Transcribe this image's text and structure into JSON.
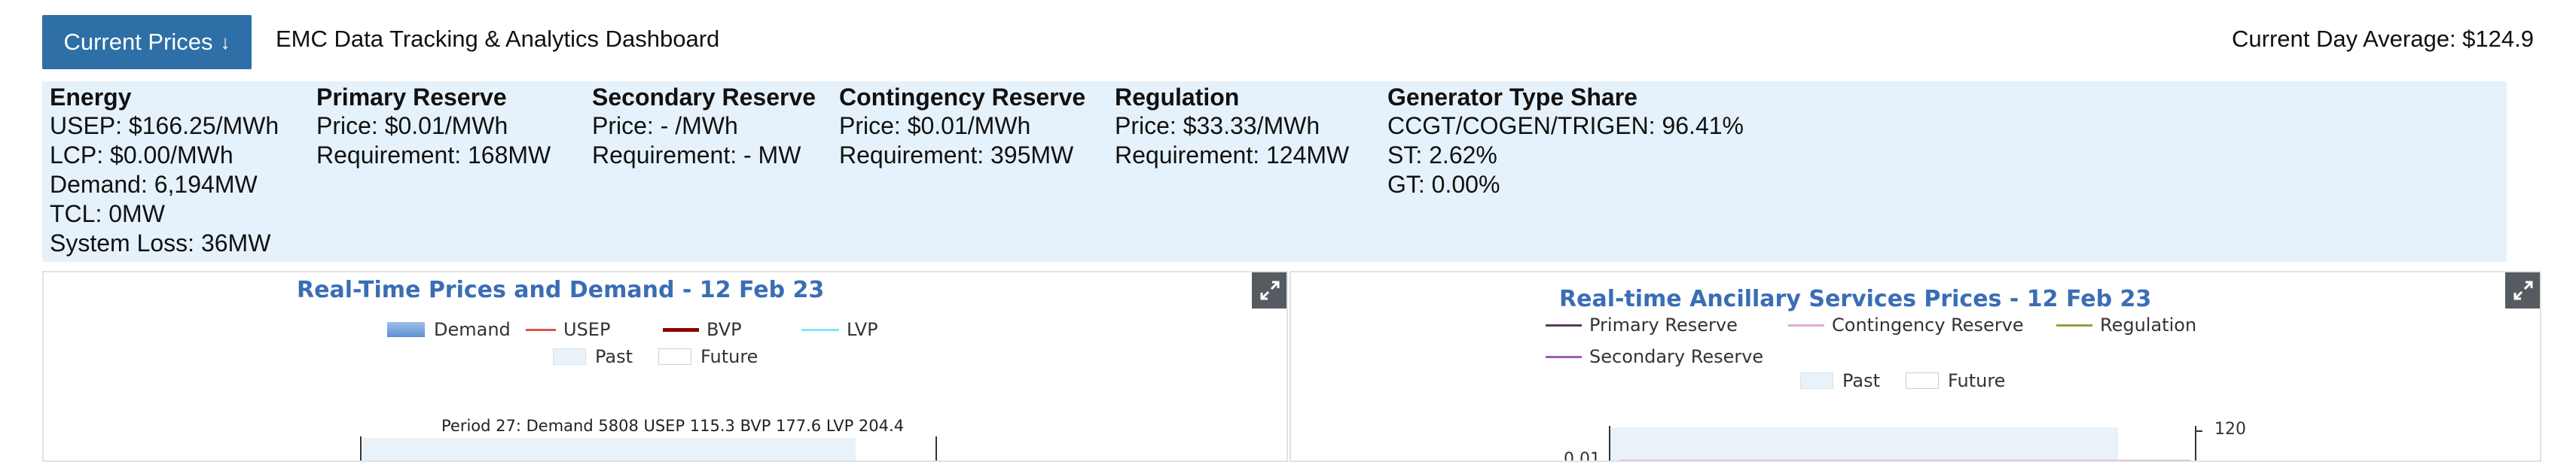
{
  "header": {
    "prices_button": "Current Prices",
    "prices_button_arrow": "↓",
    "title": "EMC Data Tracking & Analytics Dashboard",
    "day_average": "Current Day Average: $124.9"
  },
  "info": {
    "energy": {
      "title": "Energy",
      "lines": [
        "USEP: $166.25/MWh",
        "LCP: $0.00/MWh",
        "Demand: 6,194MW",
        "TCL: 0MW",
        "System Loss: 36MW"
      ]
    },
    "primary_reserve": {
      "title": "Primary Reserve",
      "lines": [
        "Price: $0.01/MWh",
        "Requirement: 168MW"
      ]
    },
    "secondary_reserve": {
      "title": "Secondary Reserve",
      "lines": [
        "Price: - /MWh",
        "Requirement: - MW"
      ]
    },
    "contingency_reserve": {
      "title": "Contingency Reserve",
      "lines": [
        "Price: $0.01/MWh",
        "Requirement: 395MW"
      ]
    },
    "regulation": {
      "title": "Regulation",
      "lines": [
        "Price: $33.33/MWh",
        "Requirement: 124MW"
      ]
    },
    "generator_share": {
      "title": "Generator Type Share",
      "lines": [
        "CCGT/COGEN/TRIGEN: 96.41%",
        "ST: 2.62%",
        "GT: 0.00%"
      ]
    }
  },
  "charts": {
    "left": {
      "title": "Real-Time Prices and Demand - 12 Feb 23",
      "legend": {
        "demand": "Demand",
        "usep": "USEP",
        "bvp": "BVP",
        "lvp": "LVP",
        "past": "Past",
        "future": "Future"
      },
      "tooltip": "Period 27: Demand 5808 USEP 115.3 BVP 177.6 LVP 204.4",
      "colors": {
        "demand": "#7aa6df",
        "usep": "#d9534f",
        "bvp": "#8b0000",
        "lvp": "#7fe7f5"
      }
    },
    "right": {
      "title": "Real-time Ancillary Services Prices - 12 Feb 23",
      "legend": {
        "primary": "Primary Reserve",
        "contingency": "Contingency Reserve",
        "regulation": "Regulation",
        "secondary": "Secondary Reserve",
        "past": "Past",
        "future": "Future"
      },
      "axis": {
        "left_tick": "0.01",
        "right_tick": "120"
      },
      "colors": {
        "primary": "#5b3a5f",
        "contingency": "#d8aed6",
        "regulation": "#9c9a3a",
        "secondary": "#9b5fb4"
      }
    }
  },
  "icons": {
    "expand": "expand-icon"
  }
}
